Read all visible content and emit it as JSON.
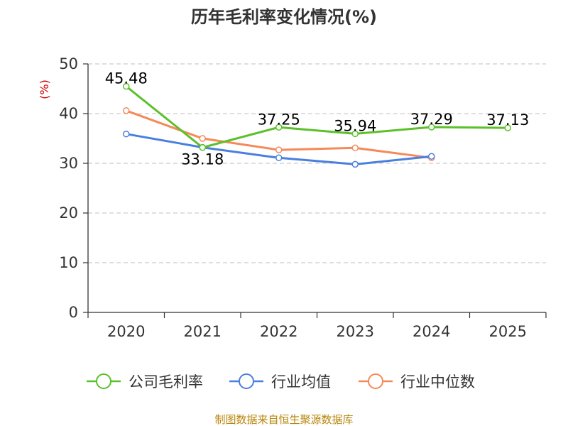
{
  "chart_data": {
    "type": "line",
    "title": "历年毛利率变化情况(%)",
    "ylabel": "(%)",
    "xlabel": "",
    "categories": [
      "2020",
      "2021",
      "2022",
      "2023",
      "2024",
      "2025"
    ],
    "ylim": [
      0,
      50
    ],
    "yticks": [
      0,
      10,
      20,
      30,
      40,
      50
    ],
    "grid": true,
    "legend_position": "bottom",
    "series": [
      {
        "name": "公司毛利率",
        "color": "#5cc02a",
        "values": [
          45.48,
          33.18,
          37.25,
          35.94,
          37.29,
          37.13
        ],
        "labels": [
          "45.48",
          "33.18",
          "37.25",
          "35.94",
          "37.29",
          "37.13"
        ]
      },
      {
        "name": "行业均值",
        "color": "#4a7fde",
        "values": [
          35.9,
          33.2,
          31.1,
          29.8,
          31.4,
          null
        ]
      },
      {
        "name": "行业中位数",
        "color": "#f5895a",
        "values": [
          40.6,
          35.0,
          32.7,
          33.1,
          31.1,
          null
        ]
      }
    ],
    "source": "制图数据来自恒生聚源数据库"
  }
}
